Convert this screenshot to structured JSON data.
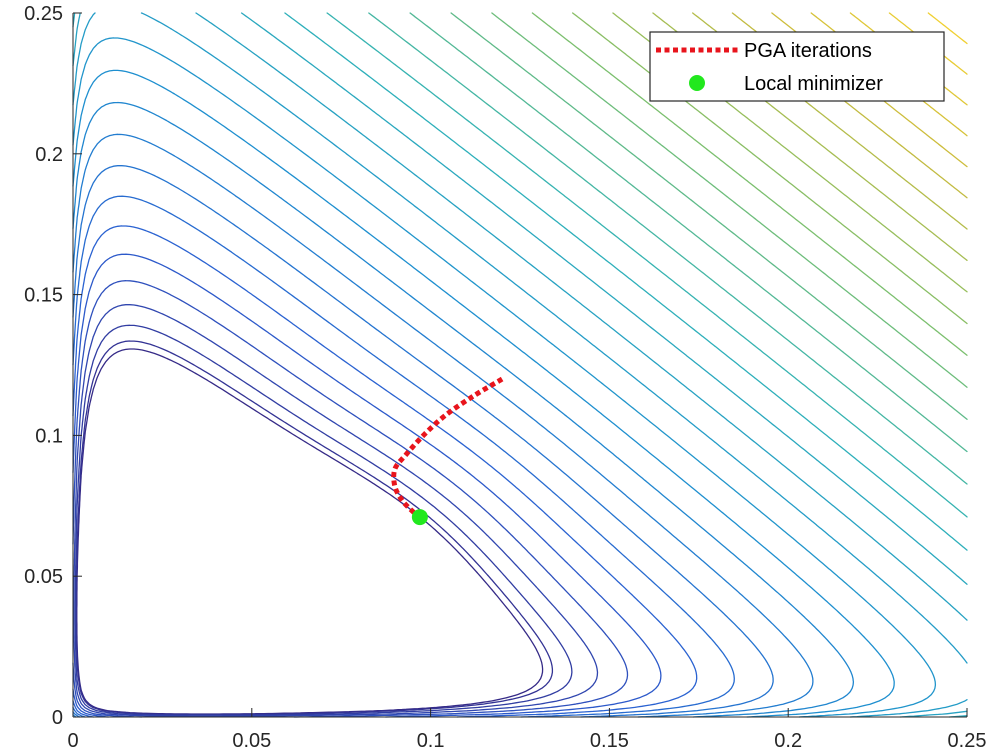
{
  "chart_data": {
    "type": "contour",
    "xlim": [
      0,
      0.25
    ],
    "ylim": [
      0,
      0.25
    ],
    "xticks": [
      "0",
      "0.05",
      "0.1",
      "0.15",
      "0.2",
      "0.25"
    ],
    "yticks": [
      "0",
      "0.05",
      "0.1",
      "0.15",
      "0.2",
      "0.25"
    ],
    "grid": false,
    "legend_position": "top-right",
    "legend": [
      {
        "label": "PGA iterations",
        "color": "#e8141c",
        "style": "dotted-line"
      },
      {
        "label": "Local minimizer",
        "color": "#22e81e",
        "style": "marker"
      }
    ],
    "pga_path": {
      "x": [
        0.12,
        0.112,
        0.104,
        0.098,
        0.093,
        0.09,
        0.09,
        0.092,
        0.095,
        0.097
      ],
      "y": [
        0.12,
        0.114,
        0.107,
        0.1,
        0.093,
        0.088,
        0.082,
        0.077,
        0.073,
        0.071
      ]
    },
    "local_minimizer": {
      "x": 0.097,
      "y": 0.071
    },
    "colormap": [
      "#352a87",
      "#2b5ed1",
      "#1e8fcf",
      "#2fb2b8",
      "#7bbf6e",
      "#c9bb3d",
      "#f9d530"
    ]
  }
}
